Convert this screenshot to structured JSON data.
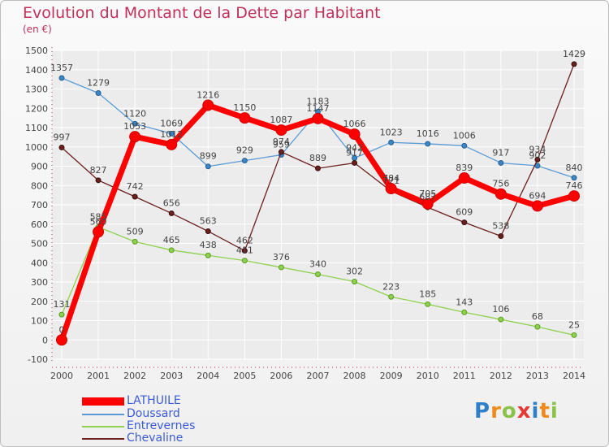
{
  "chart_data": {
    "type": "line",
    "title": "Evolution du Montant de la Dette par Habitant",
    "subtitle": "(en €)",
    "x": [
      "2000",
      "2001",
      "2002",
      "2003",
      "2004",
      "2005",
      "2006",
      "2007",
      "2008",
      "2009",
      "2010",
      "2011",
      "2012",
      "2013",
      "2014"
    ],
    "ylim": [
      -100,
      1500
    ],
    "yticks": [
      -100,
      0,
      100,
      200,
      300,
      400,
      500,
      600,
      700,
      800,
      900,
      1000,
      1100,
      1200,
      1300,
      1400,
      1500
    ],
    "grid": true,
    "series": [
      {
        "name": "Doussard",
        "color": "#5b9bd5",
        "values": [
          1357,
          1279,
          1120,
          1069,
          899,
          929,
          959,
          1183,
          942,
          1023,
          1016,
          1006,
          917,
          902,
          840
        ]
      },
      {
        "name": "Entrevernes",
        "color": "#8fd14f",
        "values": [
          131,
          585,
          509,
          465,
          438,
          411,
          376,
          340,
          302,
          223,
          185,
          143,
          106,
          68,
          25
        ]
      },
      {
        "name": "Chevaline",
        "color": "#6b1f1f",
        "values": [
          997,
          827,
          742,
          656,
          563,
          462,
          974,
          889,
          917,
          771,
          687,
          609,
          538,
          934,
          1429
        ]
      },
      {
        "name": "LATHUILE",
        "color": "#ff0000",
        "values": [
          0,
          560,
          1053,
          1012,
          1216,
          1150,
          1087,
          1147,
          1066,
          784,
          705,
          839,
          756,
          694,
          746
        ]
      }
    ],
    "legend": [
      "LATHUILE",
      "Doussard",
      "Entrevernes",
      "Chevaline"
    ],
    "legend_position": "bottom-left"
  },
  "logo": {
    "text": "Proxiti",
    "letters": [
      "P",
      "r",
      "o",
      "x",
      "i",
      "t",
      "i"
    ],
    "colors": [
      "#2f80c8",
      "#f08a1c",
      "#8bc34a",
      "#e53935",
      "#2f80c8",
      "#f08a1c",
      "#8bc34a"
    ]
  }
}
